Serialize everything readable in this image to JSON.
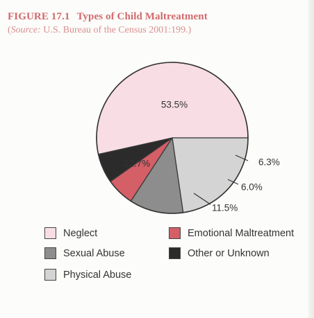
{
  "figure": {
    "label": "FIGURE 17.1",
    "title": "Types of Child Maltreatment",
    "source_label": "Source:",
    "source_text": "U.S. Bureau of the Census 2001:199.",
    "open_paren": "(",
    "close_paren": ")"
  },
  "chart_data": {
    "type": "pie",
    "title": "Types of Child Maltreatment",
    "slices": [
      {
        "name": "Neglect",
        "value": 53.5,
        "label": "53.5%",
        "color": "#f8dde5",
        "label_placement": "inside"
      },
      {
        "name": "Other or Unknown",
        "value": 6.3,
        "label": "6.3%",
        "color": "#2b2b2b",
        "label_placement": "outside"
      },
      {
        "name": "Emotional Maltreatment",
        "value": 6.0,
        "label": "6.0%",
        "color": "#d45f66",
        "label_placement": "outside"
      },
      {
        "name": "Sexual Abuse",
        "value": 11.5,
        "label": "11.5%",
        "color": "#8d8d8d",
        "label_placement": "outside"
      },
      {
        "name": "Physical Abuse",
        "value": 22.7,
        "label": "22.7%",
        "color": "#d4d4d4",
        "label_placement": "inside"
      }
    ],
    "legend": [
      {
        "name": "Neglect",
        "color": "#f8dde5"
      },
      {
        "name": "Emotional Maltreatment",
        "color": "#d45f66"
      },
      {
        "name": "Sexual Abuse",
        "color": "#8d8d8d"
      },
      {
        "name": "Other or Unknown",
        "color": "#2b2b2b"
      },
      {
        "name": "Physical Abuse",
        "color": "#d4d4d4"
      }
    ],
    "legend_placement": "bottom"
  }
}
